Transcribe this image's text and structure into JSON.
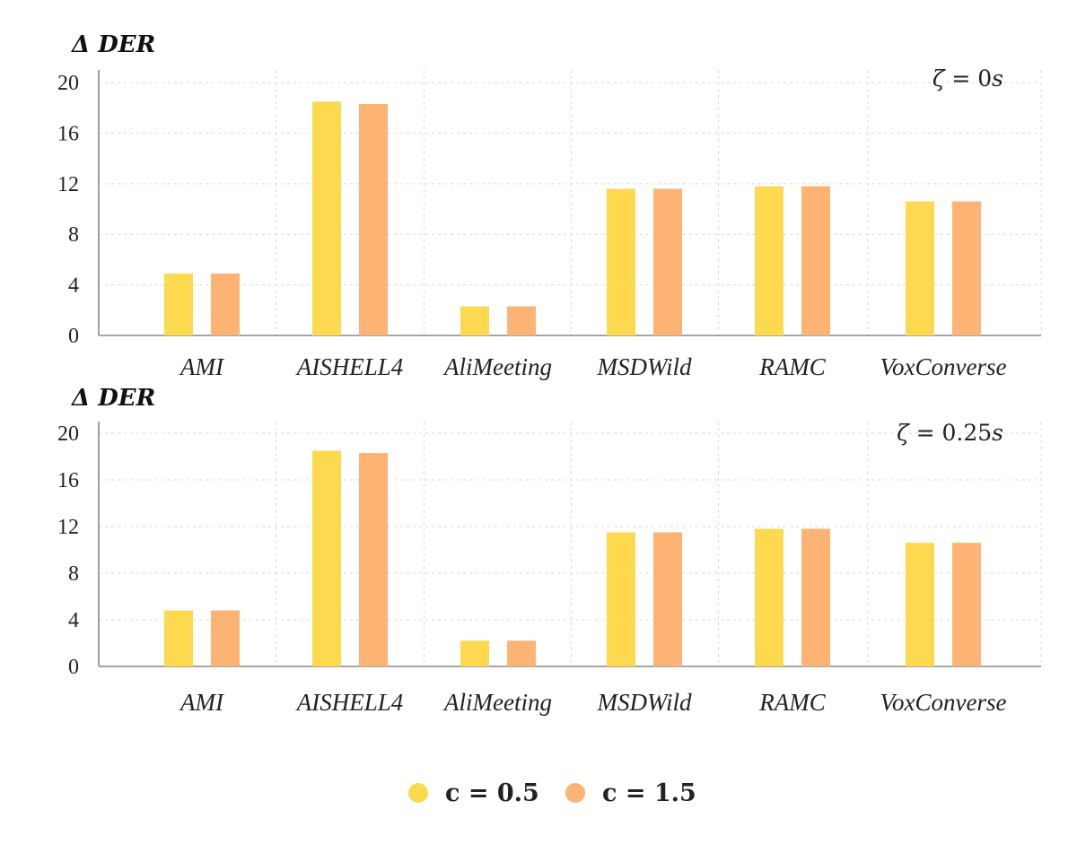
{
  "chart_data": [
    {
      "type": "bar",
      "ylabel": "Δ DER",
      "annotation": {
        "symbol": "ζ",
        "eq": " = ",
        "value": "0",
        "unit": "s"
      },
      "categories": [
        "AMI",
        "AISHELL4",
        "AliMeeting",
        "MSDWild",
        "RAMC",
        "VoxConverse"
      ],
      "yticks": [
        "0",
        "4",
        "8",
        "12",
        "16",
        "20"
      ],
      "ylim": [
        0,
        21
      ],
      "grid": true,
      "series": [
        {
          "name": "c = 0.5",
          "color": "#FDD94F",
          "values": [
            4.9,
            18.5,
            2.3,
            11.6,
            11.8,
            10.6
          ]
        },
        {
          "name": "c = 1.5",
          "color": "#FCB373",
          "values": [
            4.9,
            18.3,
            2.3,
            11.6,
            11.8,
            10.6
          ]
        }
      ]
    },
    {
      "type": "bar",
      "ylabel": "Δ DER",
      "annotation": {
        "symbol": "ζ",
        "eq": " = ",
        "value": "0.25",
        "unit": "s"
      },
      "categories": [
        "AMI",
        "AISHELL4",
        "AliMeeting",
        "MSDWild",
        "RAMC",
        "VoxConverse"
      ],
      "yticks": [
        "0",
        "4",
        "8",
        "12",
        "16",
        "20"
      ],
      "ylim": [
        0,
        21
      ],
      "grid": true,
      "series": [
        {
          "name": "c = 0.5",
          "color": "#FDD94F",
          "values": [
            4.8,
            18.5,
            2.2,
            11.5,
            11.8,
            10.6
          ]
        },
        {
          "name": "c = 1.5",
          "color": "#FCB373",
          "values": [
            4.8,
            18.3,
            2.2,
            11.5,
            11.8,
            10.6
          ]
        }
      ]
    }
  ],
  "legend": {
    "position": "bottom-center",
    "items": [
      {
        "label": "c = 0.5",
        "color": "#FDD94F"
      },
      {
        "label": "c = 1.5",
        "color": "#FCB373"
      }
    ]
  }
}
